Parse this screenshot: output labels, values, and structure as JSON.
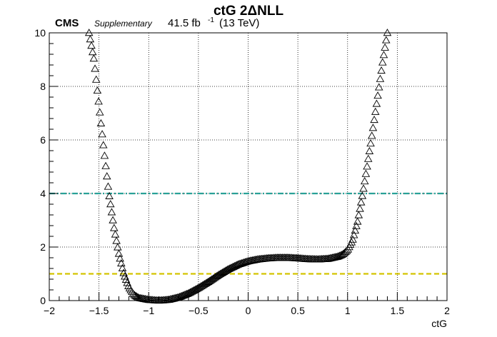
{
  "chart_data": {
    "type": "scatter",
    "title": "ctG 2ΔNLL",
    "header": {
      "experiment": "CMS",
      "status": "Supplementary",
      "lumi_prefix": "41.5 fb",
      "lumi_exponent": "-1",
      "energy": "(13 TeV)"
    },
    "xlabel": "ctG",
    "ylabel": "",
    "xlim": [
      -2,
      2
    ],
    "ylim": [
      0,
      10
    ],
    "grid": true,
    "xticks": [
      -2,
      -1.5,
      -1,
      -0.5,
      0,
      0.5,
      1,
      1.5,
      2
    ],
    "xtick_labels": [
      "−2",
      "−1.5",
      "−1",
      "−0.5",
      "0",
      "0.5",
      "1",
      "1.5",
      "2"
    ],
    "yticks": [
      0,
      2,
      4,
      6,
      8,
      10
    ],
    "ytick_labels": [
      "0",
      "2",
      "4",
      "6",
      "8",
      "10"
    ],
    "reference_lines": [
      {
        "y": 4,
        "color": "#2aa198",
        "style": "dash-dot"
      },
      {
        "y": 1,
        "color": "#d4c400",
        "style": "dashed"
      }
    ],
    "marker": {
      "shape": "open-triangle",
      "color": "#000000"
    },
    "curve_knots": [
      [
        -1.6,
        10.0
      ],
      [
        -1.55,
        9.0
      ],
      [
        -1.5,
        7.3
      ],
      [
        -1.45,
        5.6
      ],
      [
        -1.4,
        4.0
      ],
      [
        -1.35,
        2.75
      ],
      [
        -1.3,
        1.75
      ],
      [
        -1.25,
        1.0
      ],
      [
        -1.2,
        0.5
      ],
      [
        -1.15,
        0.22
      ],
      [
        -1.1,
        0.1
      ],
      [
        -1.0,
        0.03
      ],
      [
        -0.9,
        0.0
      ],
      [
        -0.8,
        0.03
      ],
      [
        -0.7,
        0.12
      ],
      [
        -0.6,
        0.27
      ],
      [
        -0.5,
        0.47
      ],
      [
        -0.4,
        0.7
      ],
      [
        -0.3,
        0.95
      ],
      [
        -0.2,
        1.17
      ],
      [
        -0.1,
        1.35
      ],
      [
        0.0,
        1.47
      ],
      [
        0.1,
        1.54
      ],
      [
        0.2,
        1.58
      ],
      [
        0.3,
        1.6
      ],
      [
        0.4,
        1.6
      ],
      [
        0.5,
        1.58
      ],
      [
        0.6,
        1.55
      ],
      [
        0.7,
        1.54
      ],
      [
        0.8,
        1.56
      ],
      [
        0.9,
        1.64
      ],
      [
        0.95,
        1.72
      ],
      [
        1.0,
        1.88
      ],
      [
        1.05,
        2.25
      ],
      [
        1.1,
        2.95
      ],
      [
        1.15,
        3.95
      ],
      [
        1.2,
        5.1
      ],
      [
        1.25,
        6.3
      ],
      [
        1.3,
        7.55
      ],
      [
        1.35,
        8.85
      ],
      [
        1.4,
        10.0
      ]
    ]
  }
}
